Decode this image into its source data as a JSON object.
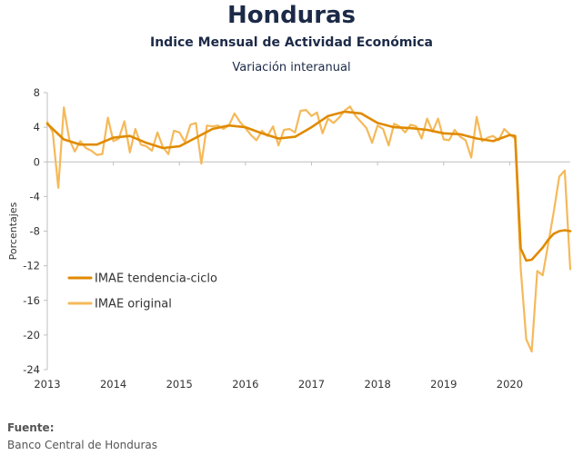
{
  "header": {
    "title": "Honduras",
    "subtitle": "Indice Mensual de  Actividad Económica",
    "subtitle2": "Variación interanual"
  },
  "footer": {
    "source_label": "Fuente:",
    "source_text": "Banco Central de Honduras"
  },
  "colors": {
    "trend": "#e08a00",
    "original": "#f5b95a",
    "axis": "#bfbfbf"
  },
  "chart_data": {
    "type": "line",
    "ylabel": "Porcentajes",
    "ylim": [
      -24,
      8
    ],
    "yticks": [
      8,
      4,
      0,
      -4,
      -8,
      -12,
      -16,
      -20,
      -24
    ],
    "xlim": [
      2013,
      2020.917
    ],
    "xticks": [
      "2013",
      "2014",
      "2015",
      "2016",
      "2017",
      "2018",
      "2019",
      "2020"
    ],
    "grid": false,
    "legend_position": "lower-left",
    "series": [
      {
        "name": "IMAE tendencia-ciclo",
        "role": "trend",
        "x": [
          2013.0,
          2013.25,
          2013.5,
          2013.75,
          2014.0,
          2014.25,
          2014.5,
          2014.75,
          2015.0,
          2015.25,
          2015.5,
          2015.75,
          2016.0,
          2016.25,
          2016.5,
          2016.75,
          2017.0,
          2017.25,
          2017.5,
          2017.75,
          2018.0,
          2018.25,
          2018.5,
          2018.75,
          2019.0,
          2019.25,
          2019.5,
          2019.75,
          2020.0,
          2020.083,
          2020.167,
          2020.25,
          2020.333,
          2020.417,
          2020.5,
          2020.583,
          2020.667,
          2020.75,
          2020.833,
          2020.917
        ],
        "y": [
          4.4,
          2.6,
          2.0,
          2.0,
          2.8,
          3.0,
          2.2,
          1.6,
          1.8,
          2.8,
          3.8,
          4.2,
          4.0,
          3.3,
          2.7,
          2.9,
          4.0,
          5.3,
          5.8,
          5.6,
          4.5,
          4.0,
          3.9,
          3.7,
          3.3,
          3.2,
          2.7,
          2.4,
          3.1,
          3.0,
          -10.0,
          -11.4,
          -11.3,
          -10.6,
          -9.9,
          -9.0,
          -8.3,
          -8.0,
          -7.9,
          -8.0
        ]
      },
      {
        "name": "IMAE original",
        "role": "original",
        "x": [
          2013.0,
          2013.083,
          2013.167,
          2013.25,
          2013.333,
          2013.417,
          2013.5,
          2013.583,
          2013.667,
          2013.75,
          2013.833,
          2013.917,
          2014.0,
          2014.083,
          2014.167,
          2014.25,
          2014.333,
          2014.417,
          2014.5,
          2014.583,
          2014.667,
          2014.75,
          2014.833,
          2014.917,
          2015.0,
          2015.083,
          2015.167,
          2015.25,
          2015.333,
          2015.417,
          2015.5,
          2015.583,
          2015.667,
          2015.75,
          2015.833,
          2015.917,
          2016.0,
          2016.083,
          2016.167,
          2016.25,
          2016.333,
          2016.417,
          2016.5,
          2016.583,
          2016.667,
          2016.75,
          2016.833,
          2016.917,
          2017.0,
          2017.083,
          2017.167,
          2017.25,
          2017.333,
          2017.417,
          2017.5,
          2017.583,
          2017.667,
          2017.75,
          2017.833,
          2017.917,
          2018.0,
          2018.083,
          2018.167,
          2018.25,
          2018.333,
          2018.417,
          2018.5,
          2018.583,
          2018.667,
          2018.75,
          2018.833,
          2018.917,
          2019.0,
          2019.083,
          2019.167,
          2019.25,
          2019.333,
          2019.417,
          2019.5,
          2019.583,
          2019.667,
          2019.75,
          2019.833,
          2019.917,
          2020.0,
          2020.083,
          2020.167,
          2020.25,
          2020.333,
          2020.417,
          2020.5,
          2020.583,
          2020.667,
          2020.75,
          2020.833,
          2020.917
        ],
        "y": [
          4.6,
          3.4,
          -3.0,
          6.3,
          2.6,
          1.2,
          2.4,
          1.6,
          1.3,
          0.8,
          0.9,
          5.1,
          2.4,
          2.7,
          4.7,
          1.1,
          3.8,
          2.0,
          1.8,
          1.3,
          3.4,
          1.7,
          0.9,
          3.6,
          3.4,
          2.3,
          4.3,
          4.5,
          -0.2,
          4.2,
          4.1,
          4.2,
          3.8,
          4.2,
          5.6,
          4.6,
          3.9,
          3.1,
          2.5,
          3.6,
          3.0,
          4.1,
          1.9,
          3.7,
          3.8,
          3.4,
          5.9,
          6.0,
          5.3,
          5.7,
          3.3,
          5.0,
          4.5,
          5.1,
          5.9,
          6.4,
          5.3,
          4.6,
          3.9,
          2.2,
          4.2,
          3.8,
          1.9,
          4.4,
          4.1,
          3.4,
          4.3,
          4.1,
          2.7,
          5.0,
          3.5,
          5.0,
          2.6,
          2.5,
          3.7,
          2.9,
          2.5,
          0.5,
          5.2,
          2.4,
          2.8,
          3.0,
          2.5,
          3.8,
          3.2,
          2.7,
          -12.3,
          -20.5,
          -21.9,
          -12.6,
          -13.1,
          -9.5,
          -5.8,
          -1.7,
          -1.0,
          -12.4
        ]
      }
    ]
  }
}
